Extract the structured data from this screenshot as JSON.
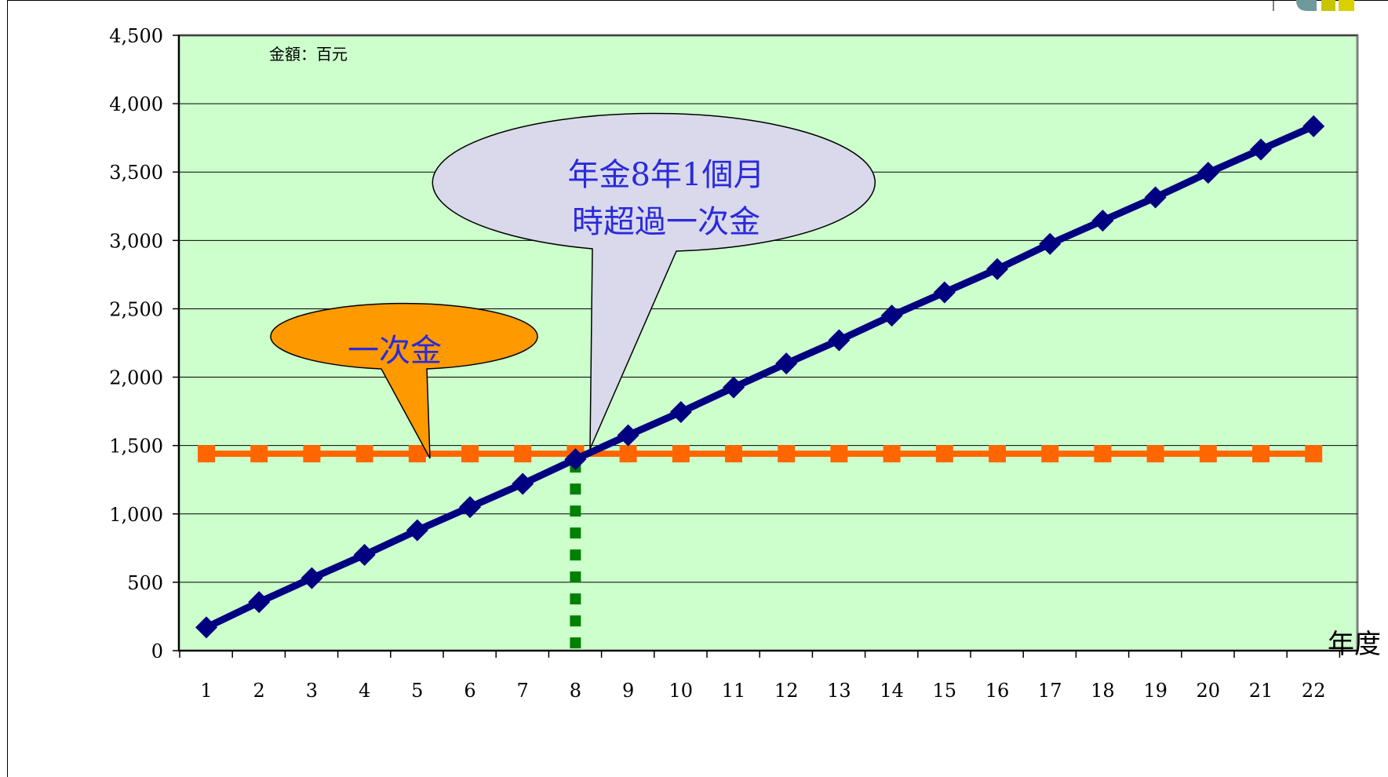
{
  "chart_data": {
    "type": "line",
    "unit_label": "金額：百元",
    "xlabel": "年度",
    "ylabel": "",
    "x": [
      1,
      2,
      3,
      4,
      5,
      6,
      7,
      8,
      9,
      10,
      11,
      12,
      13,
      14,
      15,
      16,
      17,
      18,
      19,
      20,
      21,
      22
    ],
    "ylim": [
      0,
      4500
    ],
    "yticks": [
      0,
      500,
      1000,
      1500,
      2000,
      2500,
      3000,
      3500,
      4000,
      4500
    ],
    "ytick_labels": [
      "0",
      "500",
      "1,000",
      "1,500",
      "2,000",
      "2,500",
      "3,000",
      "3,500",
      "4,000",
      "4,500"
    ],
    "grid": true,
    "series": [
      {
        "key": "annuity",
        "color": "#000080",
        "marker": "diamond",
        "values": [
          170,
          355,
          530,
          700,
          880,
          1050,
          1220,
          1400,
          1575,
          1745,
          1925,
          2100,
          2270,
          2450,
          2620,
          2790,
          2975,
          3145,
          3315,
          3495,
          3665,
          3835
        ]
      },
      {
        "key": "lump_sum",
        "color": "#ff6600",
        "marker": "square",
        "values": [
          1440,
          1440,
          1440,
          1440,
          1440,
          1440,
          1440,
          1440,
          1440,
          1440,
          1440,
          1440,
          1440,
          1440,
          1440,
          1440,
          1440,
          1440,
          1440,
          1440,
          1440,
          1440
        ]
      }
    ],
    "crossover": {
      "x": 8,
      "color": "#008000"
    },
    "annotations": [
      {
        "key": "lump",
        "lines": [
          "一次金"
        ],
        "fill": "#ff9900"
      },
      {
        "key": "cross",
        "lines": [
          "年金8年1個月",
          "時超過一次金"
        ],
        "fill": "#d9d9eb"
      }
    ],
    "plot_background": "#ccffcc"
  }
}
